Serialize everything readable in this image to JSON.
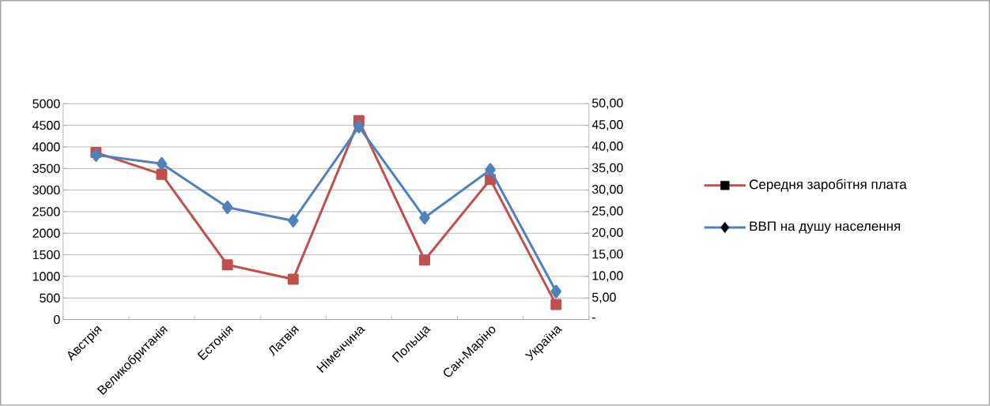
{
  "chart_data": {
    "type": "line",
    "categories": [
      "Австрія",
      "Великобританія",
      "Естонія",
      "Латвія",
      "Німеччина",
      "Польща",
      "Сан-Маріно",
      "Україна"
    ],
    "series": [
      {
        "name": "Середня заробітня плата",
        "color": "#c0504d",
        "marker": "square",
        "values": [
          3870,
          3365,
          1268,
          933,
          4610,
          1378,
          3245,
          347
        ]
      },
      {
        "name": "ВВП на душу населення",
        "color": "#4f81bd",
        "marker": "diamond",
        "axis": "y2",
        "values": [
          38.1,
          36.1,
          26.0,
          22.9,
          44.7,
          23.6,
          34.7,
          6.5
        ]
      }
    ],
    "ylim": [
      0,
      5000
    ],
    "yticks": [
      0,
      500,
      1000,
      1500,
      2000,
      2500,
      3000,
      3500,
      4000,
      4500,
      5000
    ],
    "y2lim": [
      0,
      50
    ],
    "y2ticks": [
      {
        "value": 0,
        "label": "-"
      },
      {
        "value": 5,
        "label": "5,00"
      },
      {
        "value": 10,
        "label": "10,00"
      },
      {
        "value": 15,
        "label": "15,00"
      },
      {
        "value": 20,
        "label": "20,00"
      },
      {
        "value": 25,
        "label": "25,00"
      },
      {
        "value": 30,
        "label": "30,00"
      },
      {
        "value": 35,
        "label": "35,00"
      },
      {
        "value": 40,
        "label": "40,00"
      },
      {
        "value": 45,
        "label": "45,00"
      },
      {
        "value": 50,
        "label": "50,00"
      }
    ],
    "grid": "y",
    "legend": "right"
  }
}
